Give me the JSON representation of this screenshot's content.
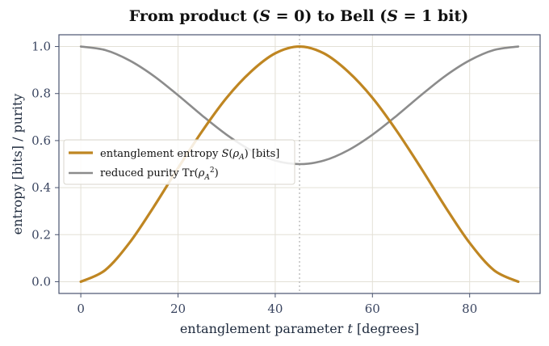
{
  "colors": {
    "entropy": "#bf8622",
    "purity": "#8c8c8c",
    "axes": "#4a5470",
    "grid": "#e3e0d6",
    "marker": "#b5b5b5"
  },
  "chart_data": {
    "type": "line",
    "title": "From product (S = 0) to Bell (S = 1 bit)",
    "xlabel": "entanglement parameter  t  [degrees]",
    "ylabel": "entropy [bits] / purity",
    "xlim": [
      -4.5,
      94.5
    ],
    "ylim": [
      -0.05,
      1.05
    ],
    "xticks": [
      0,
      20,
      40,
      60,
      80
    ],
    "yticks": [
      0.0,
      0.2,
      0.4,
      0.6,
      0.8,
      1.0
    ],
    "xtick_labels": [
      "0",
      "20",
      "40",
      "60",
      "80"
    ],
    "ytick_labels": [
      "0.0",
      "0.2",
      "0.4",
      "0.6",
      "0.8",
      "1.0"
    ],
    "grid": true,
    "legend_position": "center-left",
    "vertical_marker_x": 45,
    "x": [
      0,
      5,
      10,
      15,
      20,
      25,
      30,
      35,
      40,
      45,
      50,
      55,
      60,
      65,
      70,
      75,
      80,
      85,
      90
    ],
    "series": [
      {
        "name": "entanglement entropy S(ρ_A) [bits]",
        "values": [
          0.0,
          0.049,
          0.165,
          0.318,
          0.483,
          0.641,
          0.782,
          0.893,
          0.971,
          1.0,
          0.971,
          0.893,
          0.782,
          0.641,
          0.483,
          0.318,
          0.165,
          0.049,
          0.0
        ]
      },
      {
        "name": "reduced purity Tr(ρ_A²)",
        "values": [
          1.0,
          0.985,
          0.941,
          0.875,
          0.793,
          0.706,
          0.625,
          0.559,
          0.515,
          0.5,
          0.515,
          0.559,
          0.625,
          0.706,
          0.793,
          0.875,
          0.941,
          0.985,
          1.0
        ]
      }
    ]
  }
}
